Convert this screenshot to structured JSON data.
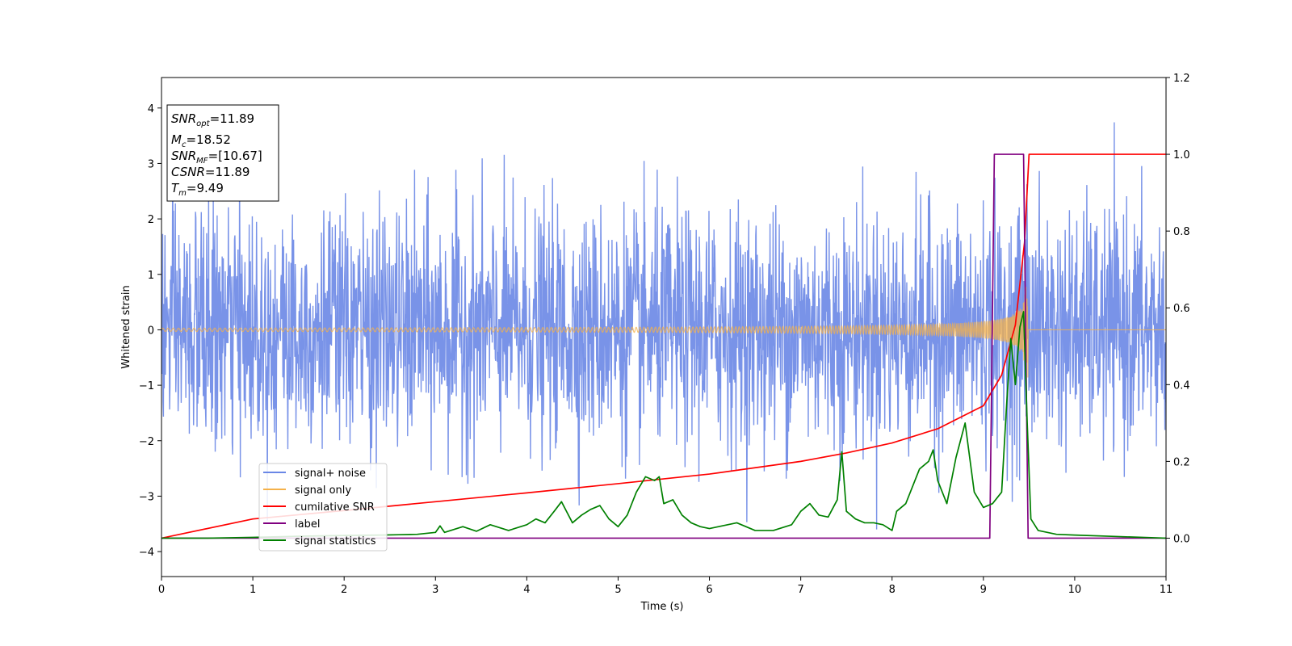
{
  "chart_data": {
    "type": "line",
    "xlabel": "Time (s)",
    "ylabel": "Whitened strain",
    "xlim": [
      0,
      11
    ],
    "ylim_left": [
      -4.45,
      4.55
    ],
    "ylim_right": [
      -0.1,
      1.2
    ],
    "x_ticks": [
      "0",
      "1",
      "2",
      "3",
      "4",
      "5",
      "6",
      "7",
      "8",
      "9",
      "10",
      "11"
    ],
    "y_ticks_left": [
      {
        "value": 4,
        "label": "4"
      },
      {
        "value": 3,
        "label": "3"
      },
      {
        "value": 2,
        "label": "2"
      },
      {
        "value": 1,
        "label": "1"
      },
      {
        "value": 0,
        "label": "0"
      },
      {
        "value": -1,
        "label": "−1"
      },
      {
        "value": -2,
        "label": "−2"
      },
      {
        "value": -3,
        "label": "−3"
      },
      {
        "value": -4,
        "label": "−4"
      }
    ],
    "y_ticks_right": [
      {
        "value": 1.2,
        "label": "1.2"
      },
      {
        "value": 1.0,
        "label": "1.0"
      },
      {
        "value": 0.8,
        "label": "0.8"
      },
      {
        "value": 0.6,
        "label": "0.6"
      },
      {
        "value": 0.4,
        "label": "0.4"
      },
      {
        "value": 0.2,
        "label": "0.2"
      },
      {
        "value": 0.0,
        "label": "0.0"
      }
    ],
    "series": [
      {
        "name": "signal+ noise",
        "color": "#6a87e6",
        "axis": "left",
        "kind": "noise",
        "sigma": 1.05,
        "peak_strain": 4.15
      },
      {
        "name": "signal only",
        "color": "#f5b14a",
        "axis": "left",
        "kind": "chirp",
        "merger_time": 9.49,
        "start_amp": 0.03,
        "peak_amp": 1.2
      },
      {
        "name": "cumilative SNR",
        "color": "#ff0000",
        "axis": "right",
        "x": [
          0,
          1,
          2,
          3,
          4,
          5,
          6,
          7,
          7.5,
          8,
          8.5,
          9,
          9.2,
          9.35,
          9.45,
          9.5,
          11
        ],
        "y": [
          0.0,
          0.05,
          0.072,
          0.095,
          0.118,
          0.142,
          0.167,
          0.2,
          0.222,
          0.248,
          0.285,
          0.345,
          0.425,
          0.555,
          0.77,
          1.0,
          1.0
        ]
      },
      {
        "name": "label",
        "color": "#800080",
        "axis": "right",
        "x": [
          0,
          9.07,
          9.12,
          9.44,
          9.49,
          11
        ],
        "y": [
          0,
          0,
          1,
          1,
          0,
          0
        ]
      },
      {
        "name": "signal statistics",
        "color": "#008000",
        "axis": "right",
        "x": [
          0,
          0.5,
          1,
          1.5,
          2,
          2.4,
          2.6,
          2.8,
          3.0,
          3.05,
          3.1,
          3.3,
          3.45,
          3.6,
          3.8,
          4.0,
          4.1,
          4.2,
          4.3,
          4.38,
          4.5,
          4.6,
          4.7,
          4.8,
          4.9,
          5.0,
          5.1,
          5.2,
          5.3,
          5.4,
          5.45,
          5.5,
          5.6,
          5.7,
          5.8,
          5.9,
          6.0,
          6.1,
          6.2,
          6.3,
          6.4,
          6.5,
          6.7,
          6.9,
          7.0,
          7.1,
          7.2,
          7.3,
          7.4,
          7.45,
          7.5,
          7.6,
          7.7,
          7.8,
          7.9,
          8.0,
          8.05,
          8.15,
          8.3,
          8.4,
          8.45,
          8.5,
          8.6,
          8.7,
          8.8,
          8.9,
          9.0,
          9.1,
          9.2,
          9.25,
          9.3,
          9.35,
          9.4,
          9.44,
          9.48,
          9.52,
          9.6,
          9.8,
          10.0,
          10.5,
          11.0
        ],
        "y": [
          0.0,
          0.0,
          0.002,
          0.005,
          0.007,
          0.008,
          0.009,
          0.01,
          0.015,
          0.032,
          0.015,
          0.03,
          0.018,
          0.035,
          0.02,
          0.035,
          0.05,
          0.04,
          0.07,
          0.095,
          0.04,
          0.06,
          0.075,
          0.085,
          0.05,
          0.03,
          0.06,
          0.12,
          0.16,
          0.15,
          0.16,
          0.09,
          0.1,
          0.06,
          0.04,
          0.03,
          0.025,
          0.03,
          0.035,
          0.04,
          0.03,
          0.02,
          0.02,
          0.035,
          0.07,
          0.09,
          0.06,
          0.055,
          0.1,
          0.225,
          0.07,
          0.05,
          0.04,
          0.04,
          0.035,
          0.02,
          0.07,
          0.09,
          0.18,
          0.2,
          0.23,
          0.15,
          0.09,
          0.21,
          0.3,
          0.12,
          0.08,
          0.09,
          0.12,
          0.33,
          0.52,
          0.4,
          0.55,
          0.59,
          0.3,
          0.05,
          0.02,
          0.01,
          0.008,
          0.004,
          0.0
        ]
      }
    ],
    "legend": {
      "placement": "lower-left",
      "labels": [
        "signal+ noise",
        "signal only",
        "cumilative SNR",
        "label",
        "signal statistics"
      ]
    },
    "grid": false
  },
  "annotation": {
    "snr_opt": {
      "base": "SNR",
      "sub": "opt",
      "value": "=11.89"
    },
    "mc": {
      "base": "M",
      "sub": "c",
      "value": "=18.52"
    },
    "snr_mf": {
      "base": "SNR",
      "sub": "MF",
      "value": "=[10.67]"
    },
    "csnr": {
      "base": "CSNR",
      "value": "=11.89"
    },
    "tm": {
      "base": "T",
      "sub": "m",
      "value": "=9.49"
    }
  }
}
